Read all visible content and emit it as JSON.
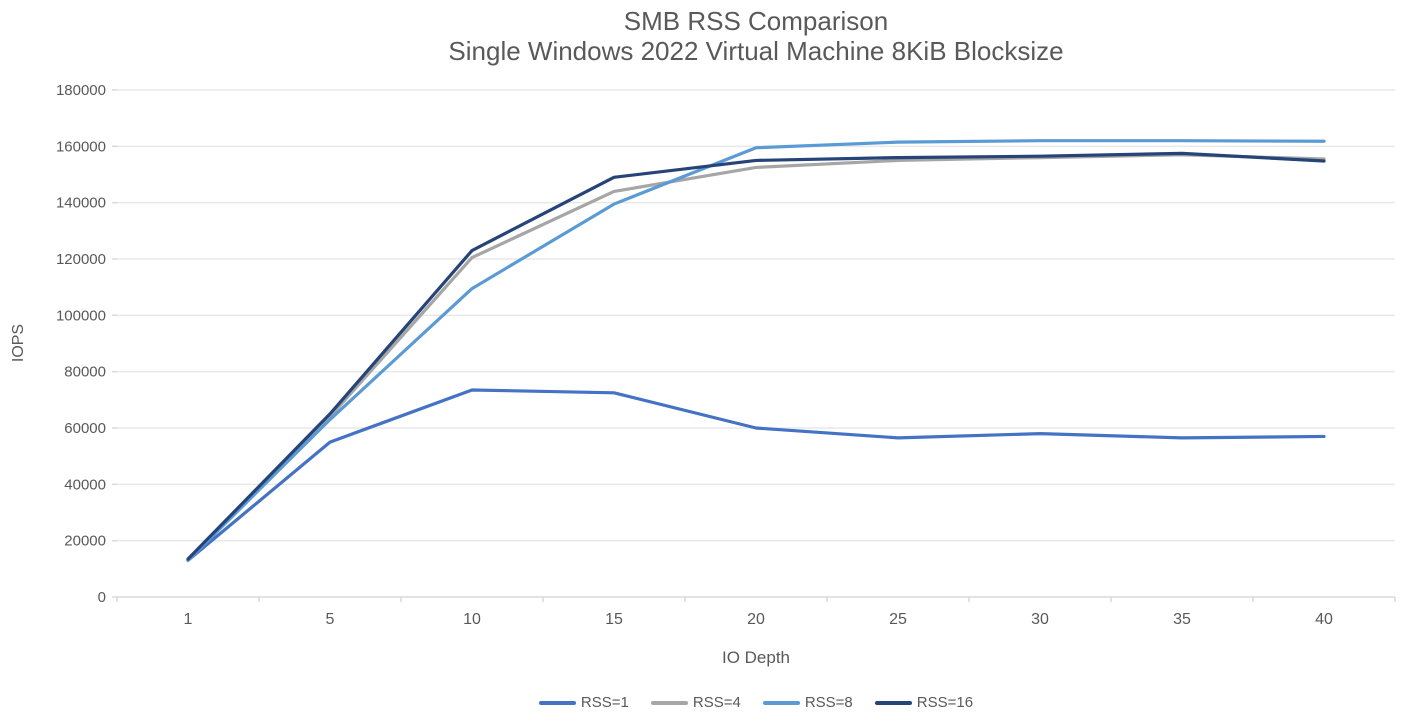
{
  "title": {
    "line1": "SMB RSS Comparison",
    "line2": "Single Windows 2022 Virtual Machine 8KiB Blocksize"
  },
  "colors": {
    "text": "#595959",
    "gridline": "#E8E8E8",
    "axis_line": "#D9D9D9",
    "background": "#FFFFFF"
  },
  "chart_data": {
    "type": "line",
    "title": "SMB RSS Comparison",
    "subtitle": "Single Windows 2022 Virtual Machine 8KiB Blocksize",
    "xlabel": "IO Depth",
    "ylabel": "IOPS",
    "ylim": [
      0,
      180000
    ],
    "y_ticks": [
      0,
      20000,
      40000,
      60000,
      80000,
      100000,
      120000,
      140000,
      160000,
      180000
    ],
    "grid": "horizontal",
    "legend_position": "bottom",
    "categories": [
      1,
      5,
      10,
      15,
      20,
      25,
      30,
      35,
      40
    ],
    "series": [
      {
        "name": "RSS=1",
        "color": "#4472C4",
        "values": [
          13000,
          55000,
          73500,
          72500,
          60000,
          56500,
          58000,
          56500,
          57000
        ]
      },
      {
        "name": "RSS=4",
        "color": "#A6A6A6",
        "values": [
          13200,
          64000,
          120500,
          144000,
          152500,
          155000,
          156000,
          157000,
          155500
        ]
      },
      {
        "name": "RSS=8",
        "color": "#5B9BD5",
        "values": [
          13000,
          63000,
          109500,
          139500,
          159500,
          161500,
          162000,
          162000,
          161800
        ]
      },
      {
        "name": "RSS=16",
        "color": "#264478",
        "values": [
          13500,
          65000,
          123000,
          149000,
          155000,
          156000,
          156500,
          157500,
          154800
        ]
      }
    ]
  }
}
